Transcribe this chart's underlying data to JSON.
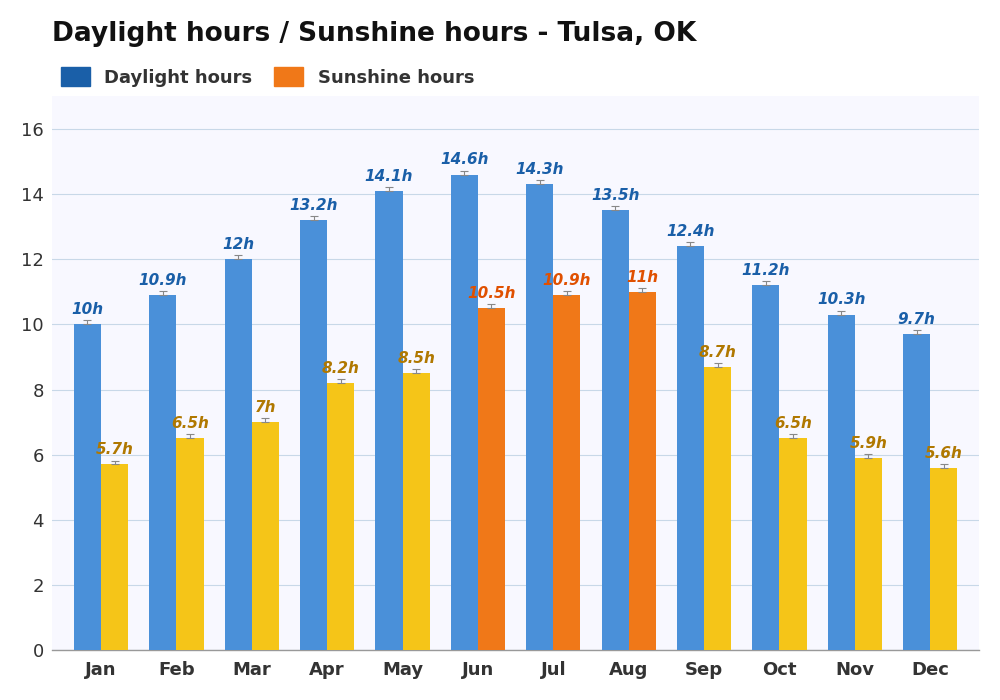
{
  "title": "Daylight hours / Sunshine hours - Tulsa, OK",
  "months": [
    "Jan",
    "Feb",
    "Mar",
    "Apr",
    "May",
    "Jun",
    "Jul",
    "Aug",
    "Sep",
    "Oct",
    "Nov",
    "Dec"
  ],
  "daylight": [
    10.0,
    10.9,
    12.0,
    13.2,
    14.1,
    14.6,
    14.3,
    13.5,
    12.4,
    11.2,
    10.3,
    9.7
  ],
  "sunshine": [
    5.7,
    6.5,
    7.0,
    8.2,
    8.5,
    10.5,
    10.9,
    11.0,
    8.7,
    6.5,
    5.9,
    5.6
  ],
  "daylight_labels": [
    "10h",
    "10.9h",
    "12h",
    "13.2h",
    "14.1h",
    "14.6h",
    "14.3h",
    "13.5h",
    "12.4h",
    "11.2h",
    "10.3h",
    "9.7h"
  ],
  "sunshine_labels": [
    "5.7h",
    "6.5h",
    "7h",
    "8.2h",
    "8.5h",
    "10.5h",
    "10.9h",
    "11h",
    "8.7h",
    "6.5h",
    "5.9h",
    "5.6h"
  ],
  "daylight_color": "#4a90d9",
  "sunshine_colors": [
    "#f5c518",
    "#f5c518",
    "#f5c518",
    "#f5c518",
    "#f5c518",
    "#f07818",
    "#f07818",
    "#f07818",
    "#f5c518",
    "#f5c518",
    "#f5c518",
    "#f5c518"
  ],
  "sunshine_legend_color": "#f07818",
  "daylight_label_color": "#1a5fa8",
  "sunshine_label_color_yellow": "#b07800",
  "sunshine_label_color_orange": "#e05000",
  "background_color": "#ffffff",
  "plot_bg_color": "#f8f8ff",
  "ylim": [
    0,
    17.0
  ],
  "yticks": [
    0,
    2,
    4,
    6,
    8,
    10,
    12,
    14,
    16
  ],
  "bar_width": 0.36,
  "legend_daylight_color": "#1a5fa8",
  "gridcolor": "#c8d8e8",
  "grid_linewidth": 0.8
}
